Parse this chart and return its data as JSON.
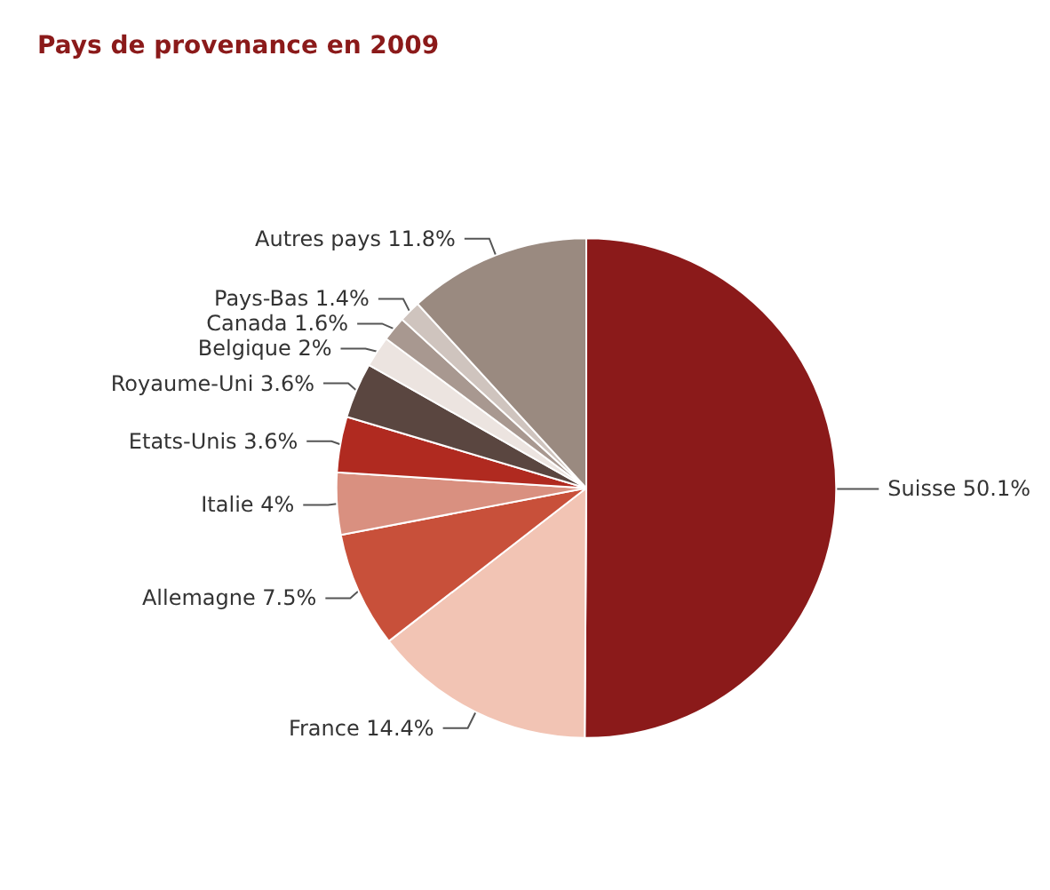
{
  "chart_data": {
    "type": "pie",
    "title": "Pays de provenance en 2009",
    "categories": [
      "Suisse",
      "France",
      "Allemagne",
      "Italie",
      "Etats-Unis",
      "Royaume-Uni",
      "Belgique",
      "Canada",
      "Pays-Bas",
      "Autres pays"
    ],
    "values": [
      50.1,
      14.4,
      7.5,
      4,
      3.6,
      3.6,
      2,
      1.6,
      1.4,
      11.8
    ],
    "value_labels": [
      "50.1%",
      "14.4%",
      "7.5%",
      "4%",
      "3.6%",
      "3.6%",
      "2%",
      "1.6%",
      "1.4%",
      "11.8%"
    ],
    "colors": [
      "#8b1a1a",
      "#f2c4b4",
      "#c8503a",
      "#d99080",
      "#b02a20",
      "#5a4640",
      "#ece4e0",
      "#a89890",
      "#cfc4be",
      "#9a8a80"
    ],
    "legend": false
  }
}
